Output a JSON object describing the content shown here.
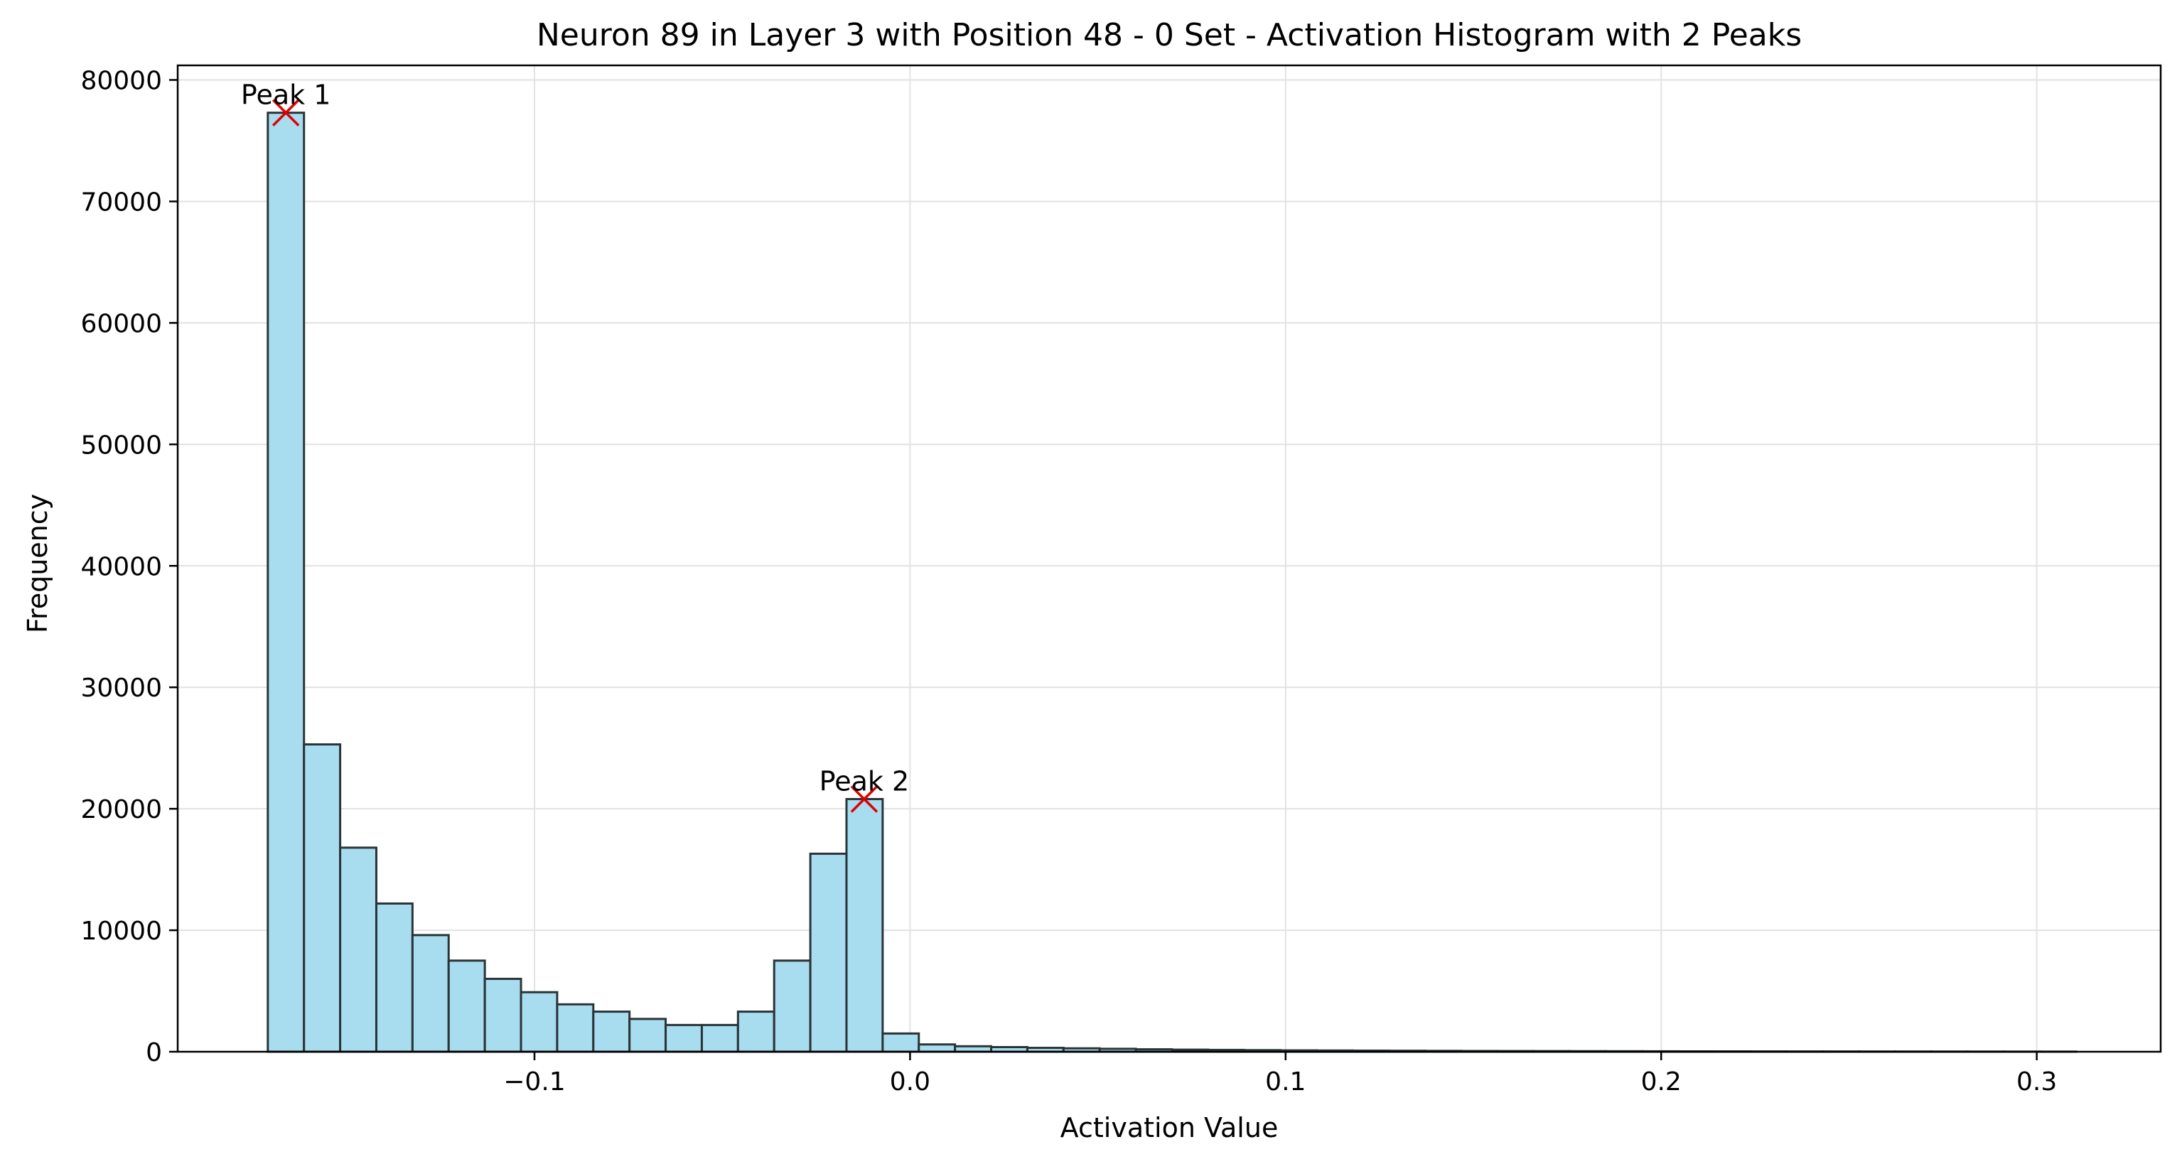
{
  "chart_data": {
    "type": "bar",
    "title": "Neuron 89 in Layer 3 with Position 48 - 0 Set - Activation Histogram with 2 Peaks",
    "xlabel": "Activation Value",
    "ylabel": "Frequency",
    "xlim": [
      -0.195,
      0.333
    ],
    "ylim": [
      0,
      81200
    ],
    "grid": true,
    "bar_color": "#a8dcef",
    "edge_color": "#2a3438",
    "grid_color": "#e2e2e2",
    "marker_color": "#e00000",
    "xticks": [
      {
        "value": -0.1,
        "label": "−0.1"
      },
      {
        "value": 0.0,
        "label": "0.0"
      },
      {
        "value": 0.1,
        "label": "0.1"
      },
      {
        "value": 0.2,
        "label": "0.2"
      },
      {
        "value": 0.3,
        "label": "0.3"
      }
    ],
    "yticks": [
      {
        "value": 0,
        "label": "0"
      },
      {
        "value": 10000,
        "label": "10000"
      },
      {
        "value": 20000,
        "label": "20000"
      },
      {
        "value": 30000,
        "label": "30000"
      },
      {
        "value": 40000,
        "label": "40000"
      },
      {
        "value": 50000,
        "label": "50000"
      },
      {
        "value": 60000,
        "label": "60000"
      },
      {
        "value": 70000,
        "label": "70000"
      },
      {
        "value": 80000,
        "label": "80000"
      }
    ],
    "bin_start": -0.171,
    "bin_width": 0.00963,
    "values": [
      77300,
      25300,
      16800,
      12200,
      9600,
      7500,
      6000,
      4900,
      3900,
      3300,
      2700,
      2200,
      2200,
      3300,
      7500,
      16300,
      20800,
      1500,
      600,
      450,
      380,
      320,
      280,
      240,
      200,
      170,
      150,
      130,
      110,
      100,
      90,
      80,
      70,
      60,
      55,
      50,
      45,
      40,
      35,
      30,
      28,
      25,
      22,
      20,
      18,
      16,
      14,
      12,
      10,
      8
    ],
    "peaks": [
      {
        "label": "Peak 1",
        "x": -0.1662,
        "y": 77300
      },
      {
        "label": "Peak 2",
        "x": -0.0122,
        "y": 20800
      }
    ]
  }
}
